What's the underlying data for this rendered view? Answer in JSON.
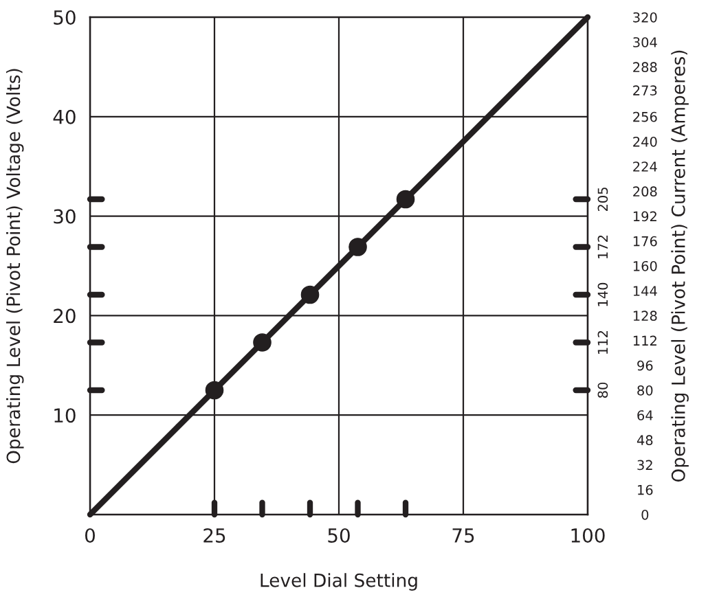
{
  "chart_data": {
    "type": "line",
    "xlabel": "Level Dial Setting",
    "ylabel": "Operating Level (Pivot Point) Voltage (Volts)",
    "y2label": "Operating Level (Pivot Point) Current (Amperes)",
    "series": [
      {
        "color": "#231f20",
        "x": [
          0,
          100
        ],
        "values": [
          0,
          50
        ]
      },
      {
        "type": "scatter",
        "color": "#231f20",
        "marker": "circle",
        "x": [
          25,
          34.6,
          44.2,
          53.8,
          63.4
        ],
        "values": [
          12.5,
          17.3,
          22.1,
          26.9,
          31.7
        ]
      }
    ],
    "xlim": [
      0,
      100
    ],
    "xticks": [
      0,
      25,
      50,
      75,
      100
    ],
    "ylim": [
      0,
      50
    ],
    "yticks": [
      10,
      20,
      30,
      40,
      50
    ],
    "y2lim": [
      0,
      320
    ],
    "y2ticks": [
      0,
      16,
      32,
      48,
      64,
      80,
      96,
      112,
      128,
      144,
      160,
      176,
      192,
      {
        "value": 208,
        "label": "208"
      },
      224,
      240,
      256,
      273,
      288,
      304,
      320
    ],
    "grid": true,
    "annotations": [
      "80",
      "112",
      "140",
      "172",
      "205"
    ]
  }
}
